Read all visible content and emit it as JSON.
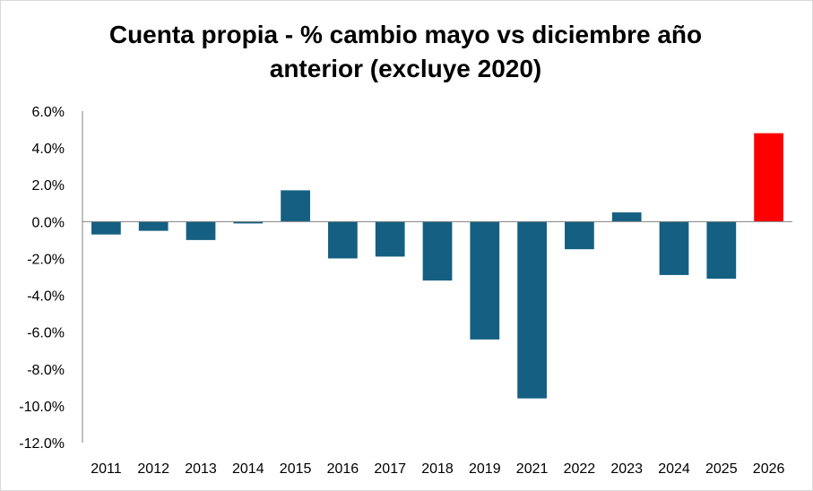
{
  "chart_data": {
    "type": "bar",
    "title_lines": [
      "Cuenta propia - % cambio mayo vs diciembre año",
      "anterior (excluye 2020)"
    ],
    "categories": [
      "2011",
      "2012",
      "2013",
      "2014",
      "2015",
      "2016",
      "2017",
      "2018",
      "2019",
      "2021",
      "2022",
      "2023",
      "2024",
      "2025",
      "2026"
    ],
    "values": [
      -0.7,
      -0.5,
      -1.0,
      -0.1,
      1.7,
      -2.0,
      -1.9,
      -3.2,
      -6.4,
      -9.6,
      -1.5,
      0.5,
      -2.9,
      -3.1,
      4.8
    ],
    "y_ticks": [
      "6.0%",
      "4.0%",
      "2.0%",
      "0.0%",
      "-2.0%",
      "-4.0%",
      "-6.0%",
      "-8.0%",
      "-10.0%",
      "-12.0%"
    ],
    "ylim": [
      -12,
      6
    ],
    "grid": false,
    "legend": "none",
    "colors": {
      "default_bar": "#156082",
      "highlight_bar": "#ff0000",
      "axis": "#808080"
    },
    "highlight_category": "2026"
  }
}
